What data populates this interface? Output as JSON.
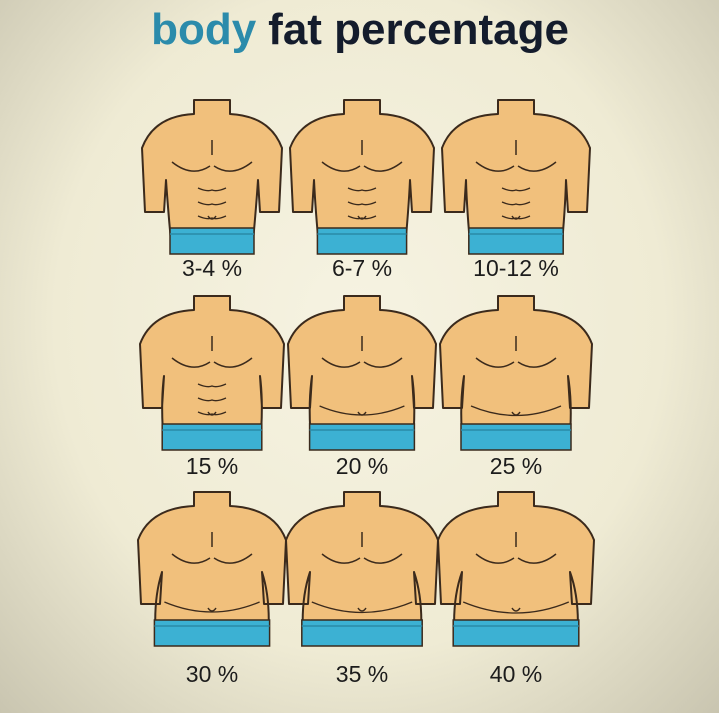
{
  "header": {
    "title_highlight": "body",
    "title_rest": "fat percentage"
  },
  "panels": [
    {
      "label": "3-4 %"
    },
    {
      "label": "6-7 %"
    },
    {
      "label": "10-12 %"
    },
    {
      "label": "15 %"
    },
    {
      "label": "20 %"
    },
    {
      "label": "25 %"
    },
    {
      "label": "30 %"
    },
    {
      "label": "35 %"
    },
    {
      "label": "40 %"
    }
  ]
}
